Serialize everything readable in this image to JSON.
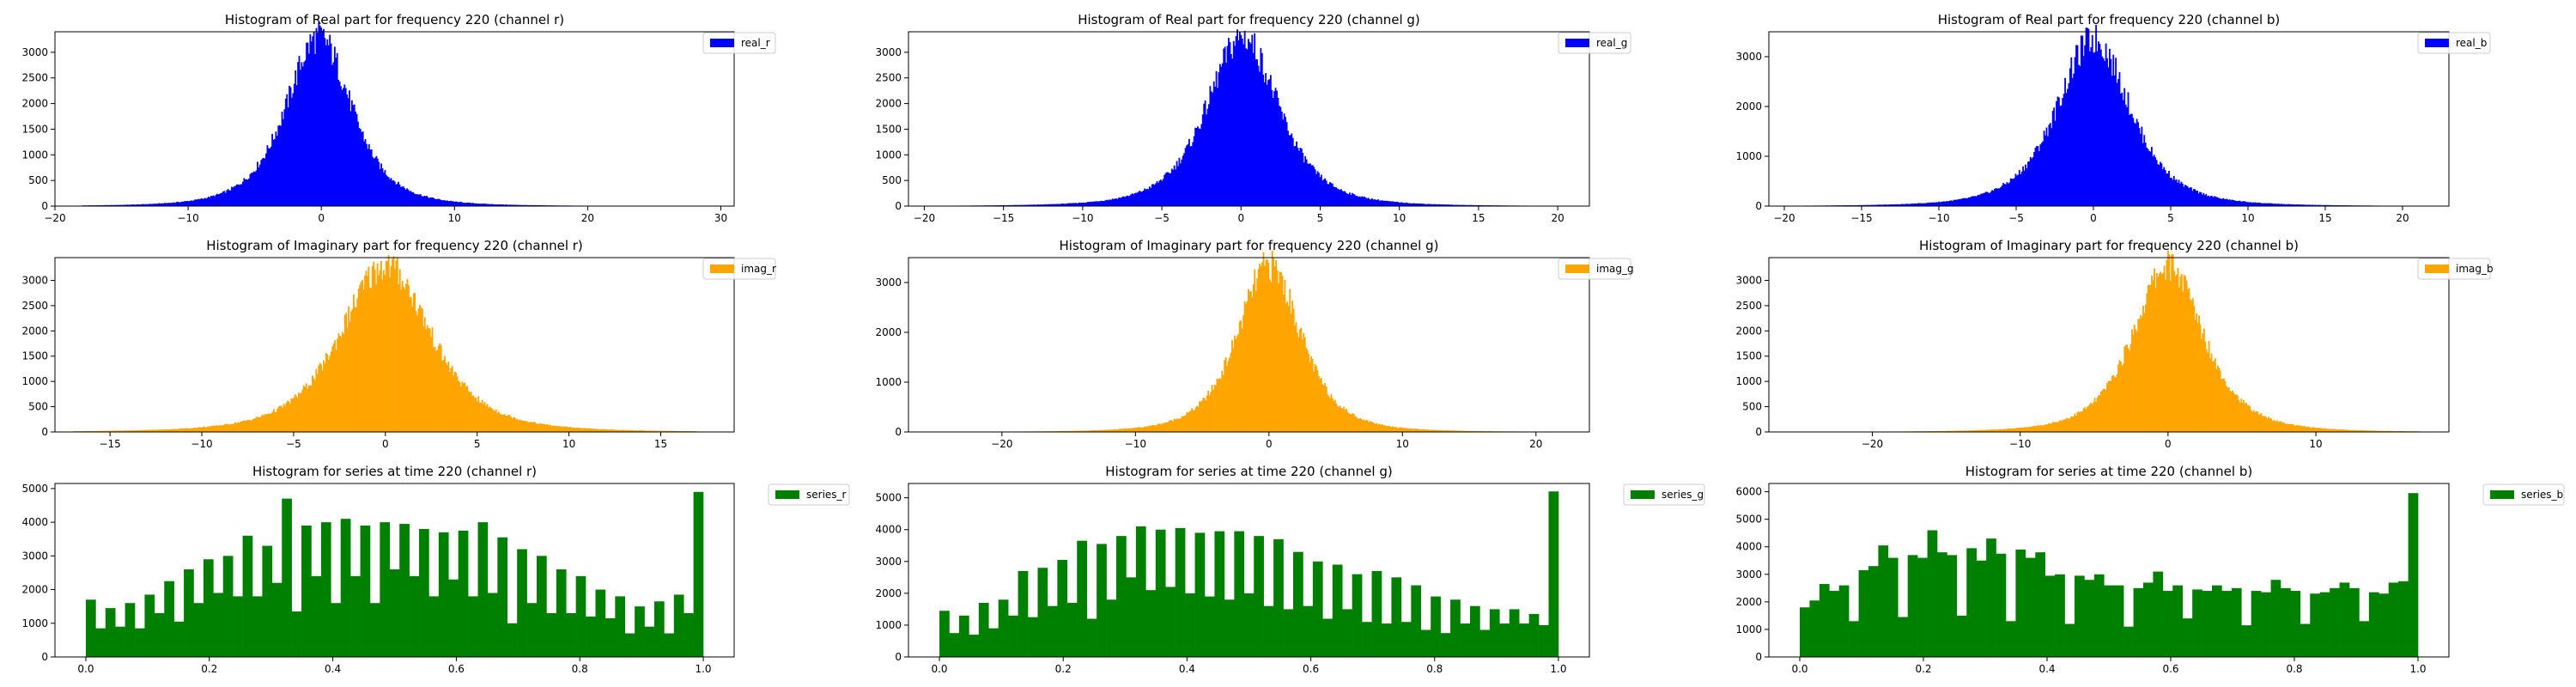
{
  "chart_data": [
    {
      "type": "bar",
      "title": "Histogram of Real part for frequency 220 (channel r)",
      "color": "#0000ff",
      "legend": "real_r",
      "legend_placement": "upper-right-outside",
      "xlim": [
        -20,
        31
      ],
      "ylim": [
        0,
        3400
      ],
      "xticks": [
        -20,
        -10,
        0,
        10,
        20,
        30
      ],
      "yticks": [
        0,
        500,
        1000,
        1500,
        2000,
        2500,
        3000
      ],
      "distribution": {
        "shape": "bell",
        "center": -0.2,
        "spread": 2.6,
        "peak": 3300,
        "range": [
          -18,
          28
        ],
        "bins": 500
      }
    },
    {
      "type": "bar",
      "title": "Histogram of Real part for frequency 220 (channel g)",
      "color": "#0000ff",
      "legend": "real_g",
      "legend_placement": "upper-right-outside",
      "xlim": [
        -21,
        22
      ],
      "ylim": [
        0,
        3400
      ],
      "xticks": [
        -20,
        -15,
        -10,
        -5,
        0,
        5,
        10,
        15,
        20
      ],
      "yticks": [
        0,
        500,
        1000,
        1500,
        2000,
        2500,
        3000
      ],
      "distribution": {
        "shape": "bell",
        "center": 0.1,
        "spread": 2.4,
        "peak": 3300,
        "range": [
          -19,
          20
        ],
        "bins": 500
      }
    },
    {
      "type": "bar",
      "title": "Histogram of Real part for frequency 220 (channel b)",
      "color": "#0000ff",
      "legend": "real_b",
      "legend_placement": "upper-right-outside",
      "xlim": [
        -21,
        23
      ],
      "ylim": [
        0,
        3500
      ],
      "xticks": [
        -20,
        -15,
        -10,
        -5,
        0,
        5,
        10,
        15,
        20
      ],
      "yticks": [
        0,
        1000,
        2000,
        3000
      ],
      "distribution": {
        "shape": "bell",
        "center": 0.0,
        "spread": 2.5,
        "peak": 3350,
        "range": [
          -19,
          21
        ],
        "bins": 500
      }
    },
    {
      "type": "bar",
      "title": "Histogram of Imaginary part for frequency 220 (channel r)",
      "color": "#ffa500",
      "legend": "imag_r",
      "legend_placement": "upper-right-outside",
      "xlim": [
        -18,
        19
      ],
      "ylim": [
        0,
        3450
      ],
      "xticks": [
        -15,
        -10,
        -5,
        0,
        5,
        10,
        15
      ],
      "yticks": [
        0,
        500,
        1000,
        1500,
        2000,
        2500,
        3000
      ],
      "distribution": {
        "shape": "bell",
        "center": 0.0,
        "spread": 2.6,
        "peak": 3300,
        "range": [
          -17,
          17
        ],
        "bins": 500
      }
    },
    {
      "type": "bar",
      "title": "Histogram of Imaginary part for frequency 220 (channel g)",
      "color": "#ffa500",
      "legend": "imag_g",
      "legend_placement": "upper-right-outside",
      "xlim": [
        -27,
        24
      ],
      "ylim": [
        0,
        3500
      ],
      "xticks": [
        -20,
        -10,
        0,
        10,
        20
      ],
      "yticks": [
        0,
        1000,
        2000,
        3000
      ],
      "distribution": {
        "shape": "bell",
        "center": 0.0,
        "spread": 2.5,
        "peak": 3350,
        "range": [
          -25,
          22
        ],
        "bins": 500
      }
    },
    {
      "type": "bar",
      "title": "Histogram of Imaginary part for frequency 220 (channel b)",
      "color": "#ffa500",
      "legend": "imag_b",
      "legend_placement": "upper-right-outside",
      "xlim": [
        -27,
        19
      ],
      "ylim": [
        0,
        3450
      ],
      "xticks": [
        -20,
        -10,
        0,
        10
      ],
      "yticks": [
        0,
        500,
        1000,
        1500,
        2000,
        2500,
        3000
      ],
      "distribution": {
        "shape": "bell",
        "center": 0.0,
        "spread": 2.5,
        "peak": 3300,
        "range": [
          -25,
          17
        ],
        "bins": 500
      }
    },
    {
      "type": "bar",
      "title": "Histogram for series at time 220 (channel r)",
      "color": "#008000",
      "legend": "series_r",
      "legend_placement": "upper-right-outside",
      "xlim": [
        -0.05,
        1.05
      ],
      "ylim": [
        0,
        5150
      ],
      "xticks": [
        0.0,
        0.2,
        0.4,
        0.6,
        0.8,
        1.0
      ],
      "xtick_labels": [
        "0.0",
        "0.2",
        "0.4",
        "0.6",
        "0.8",
        "1.0"
      ],
      "yticks": [
        0,
        1000,
        2000,
        3000,
        4000,
        5000
      ],
      "x_range": [
        0,
        1
      ],
      "values": [
        1700,
        850,
        1450,
        900,
        1600,
        850,
        1850,
        1300,
        2250,
        1050,
        2600,
        1600,
        2900,
        1900,
        3000,
        1800,
        3600,
        1800,
        3300,
        2200,
        4700,
        1350,
        3900,
        2400,
        4000,
        1600,
        4100,
        2400,
        3900,
        1600,
        4000,
        2600,
        3950,
        2400,
        3800,
        1800,
        3700,
        2300,
        3750,
        1800,
        4000,
        1900,
        3550,
        1000,
        3200,
        1600,
        3000,
        1300,
        2600,
        1300,
        2400,
        1200,
        2000,
        1150,
        1800,
        700,
        1500,
        900,
        1650,
        700,
        1850,
        1300,
        4900
      ]
    },
    {
      "type": "bar",
      "title": "Histogram for series at time 220 (channel g)",
      "color": "#008000",
      "legend": "series_g",
      "legend_placement": "upper-right-outside",
      "xlim": [
        -0.05,
        1.05
      ],
      "ylim": [
        0,
        5450
      ],
      "xticks": [
        0.0,
        0.2,
        0.4,
        0.6,
        0.8,
        1.0
      ],
      "xtick_labels": [
        "0.0",
        "0.2",
        "0.4",
        "0.6",
        "0.8",
        "1.0"
      ],
      "yticks": [
        0,
        1000,
        2000,
        3000,
        4000,
        5000
      ],
      "x_range": [
        0,
        1
      ],
      "values": [
        1450,
        750,
        1300,
        700,
        1700,
        900,
        1800,
        1300,
        2700,
        1250,
        2800,
        1600,
        3050,
        1700,
        3650,
        1200,
        3550,
        1800,
        3800,
        2500,
        4100,
        2100,
        4000,
        2200,
        4050,
        2000,
        3900,
        1900,
        3950,
        1800,
        3950,
        2000,
        3800,
        1600,
        3700,
        1500,
        3300,
        1600,
        3000,
        1200,
        2900,
        1500,
        2600,
        1100,
        2700,
        1050,
        2500,
        1100,
        2250,
        850,
        1900,
        750,
        1800,
        1050,
        1600,
        850,
        1500,
        1050,
        1500,
        1050,
        1350,
        1000,
        5200
      ]
    },
    {
      "type": "bar",
      "title": "Histogram for series at time 220 (channel b)",
      "color": "#008000",
      "legend": "series_b",
      "legend_placement": "upper-right-outside",
      "xlim": [
        -0.05,
        1.05
      ],
      "ylim": [
        0,
        6300
      ],
      "xticks": [
        0.0,
        0.2,
        0.4,
        0.6,
        0.8,
        1.0
      ],
      "xtick_labels": [
        "0.0",
        "0.2",
        "0.4",
        "0.6",
        "0.8",
        "1.0"
      ],
      "yticks": [
        0,
        1000,
        2000,
        3000,
        4000,
        5000,
        6000
      ],
      "x_range": [
        0,
        1
      ],
      "values": [
        1800,
        2050,
        2650,
        2400,
        2600,
        1300,
        3150,
        3300,
        4050,
        3600,
        1450,
        3700,
        3600,
        4600,
        3800,
        3700,
        1500,
        3950,
        3500,
        4300,
        3750,
        1300,
        3900,
        3600,
        3800,
        2950,
        3000,
        1200,
        2950,
        2800,
        3000,
        2600,
        2600,
        1100,
        2500,
        2700,
        3100,
        2400,
        2600,
        1400,
        2450,
        2400,
        2600,
        2400,
        2500,
        1150,
        2400,
        2350,
        2800,
        2500,
        2400,
        1200,
        2300,
        2350,
        2500,
        2700,
        2500,
        1300,
        2350,
        2300,
        2700,
        2750,
        5950
      ]
    }
  ]
}
